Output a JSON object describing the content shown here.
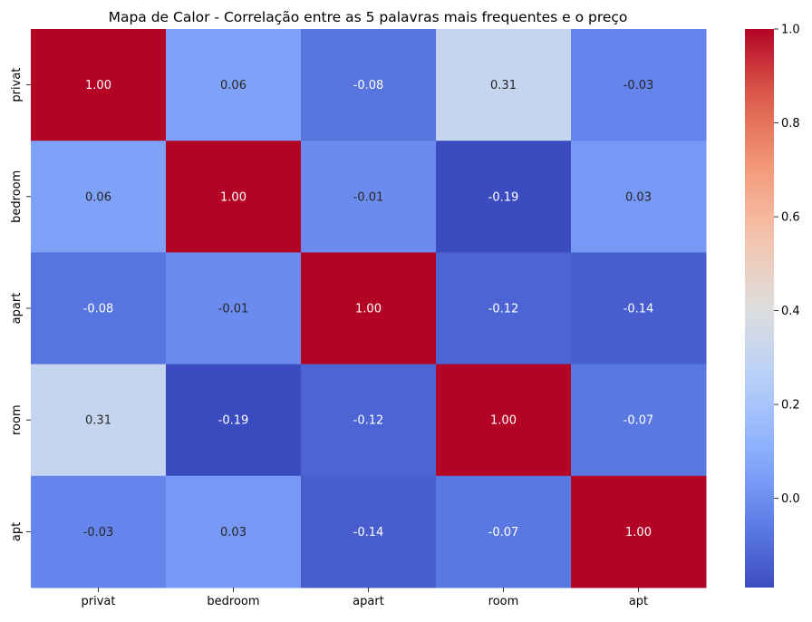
{
  "chart_data": {
    "type": "heatmap",
    "title": "Mapa de Calor - Correlação entre as 5 palavras mais frequentes e o preço",
    "x_labels": [
      "privat",
      "bedroom",
      "apart",
      "room",
      "apt"
    ],
    "y_labels": [
      "privat",
      "bedroom",
      "apart",
      "room",
      "apt"
    ],
    "values": [
      [
        1.0,
        0.06,
        -0.08,
        0.31,
        -0.03
      ],
      [
        0.06,
        1.0,
        -0.01,
        -0.19,
        0.03
      ],
      [
        -0.08,
        -0.01,
        1.0,
        -0.12,
        -0.14
      ],
      [
        0.31,
        -0.19,
        -0.12,
        1.0,
        -0.07
      ],
      [
        -0.03,
        0.03,
        -0.14,
        -0.07,
        1.0
      ]
    ],
    "annotation_labels": [
      [
        "1.00",
        "0.06",
        "-0.08",
        "0.31",
        "-0.03"
      ],
      [
        "0.06",
        "1.00",
        "-0.01",
        "-0.19",
        "0.03"
      ],
      [
        "-0.08",
        "-0.01",
        "1.00",
        "-0.12",
        "-0.14"
      ],
      [
        "0.31",
        "-0.19",
        "-0.12",
        "1.00",
        "-0.07"
      ],
      [
        "-0.03",
        "0.03",
        "-0.14",
        "-0.07",
        "1.00"
      ]
    ],
    "colormap": "coolwarm",
    "color_range": [
      -0.19,
      1.0
    ],
    "colorbar_ticks": [
      0.0,
      0.2,
      0.4,
      0.6,
      0.8,
      1.0
    ],
    "colorbar_tick_labels": [
      "0.0",
      "0.2",
      "0.4",
      "0.6",
      "0.8",
      "1.0"
    ],
    "colors": {
      "low": "#3b4cc0",
      "mid": "#dddddd",
      "high": "#b40426"
    }
  }
}
